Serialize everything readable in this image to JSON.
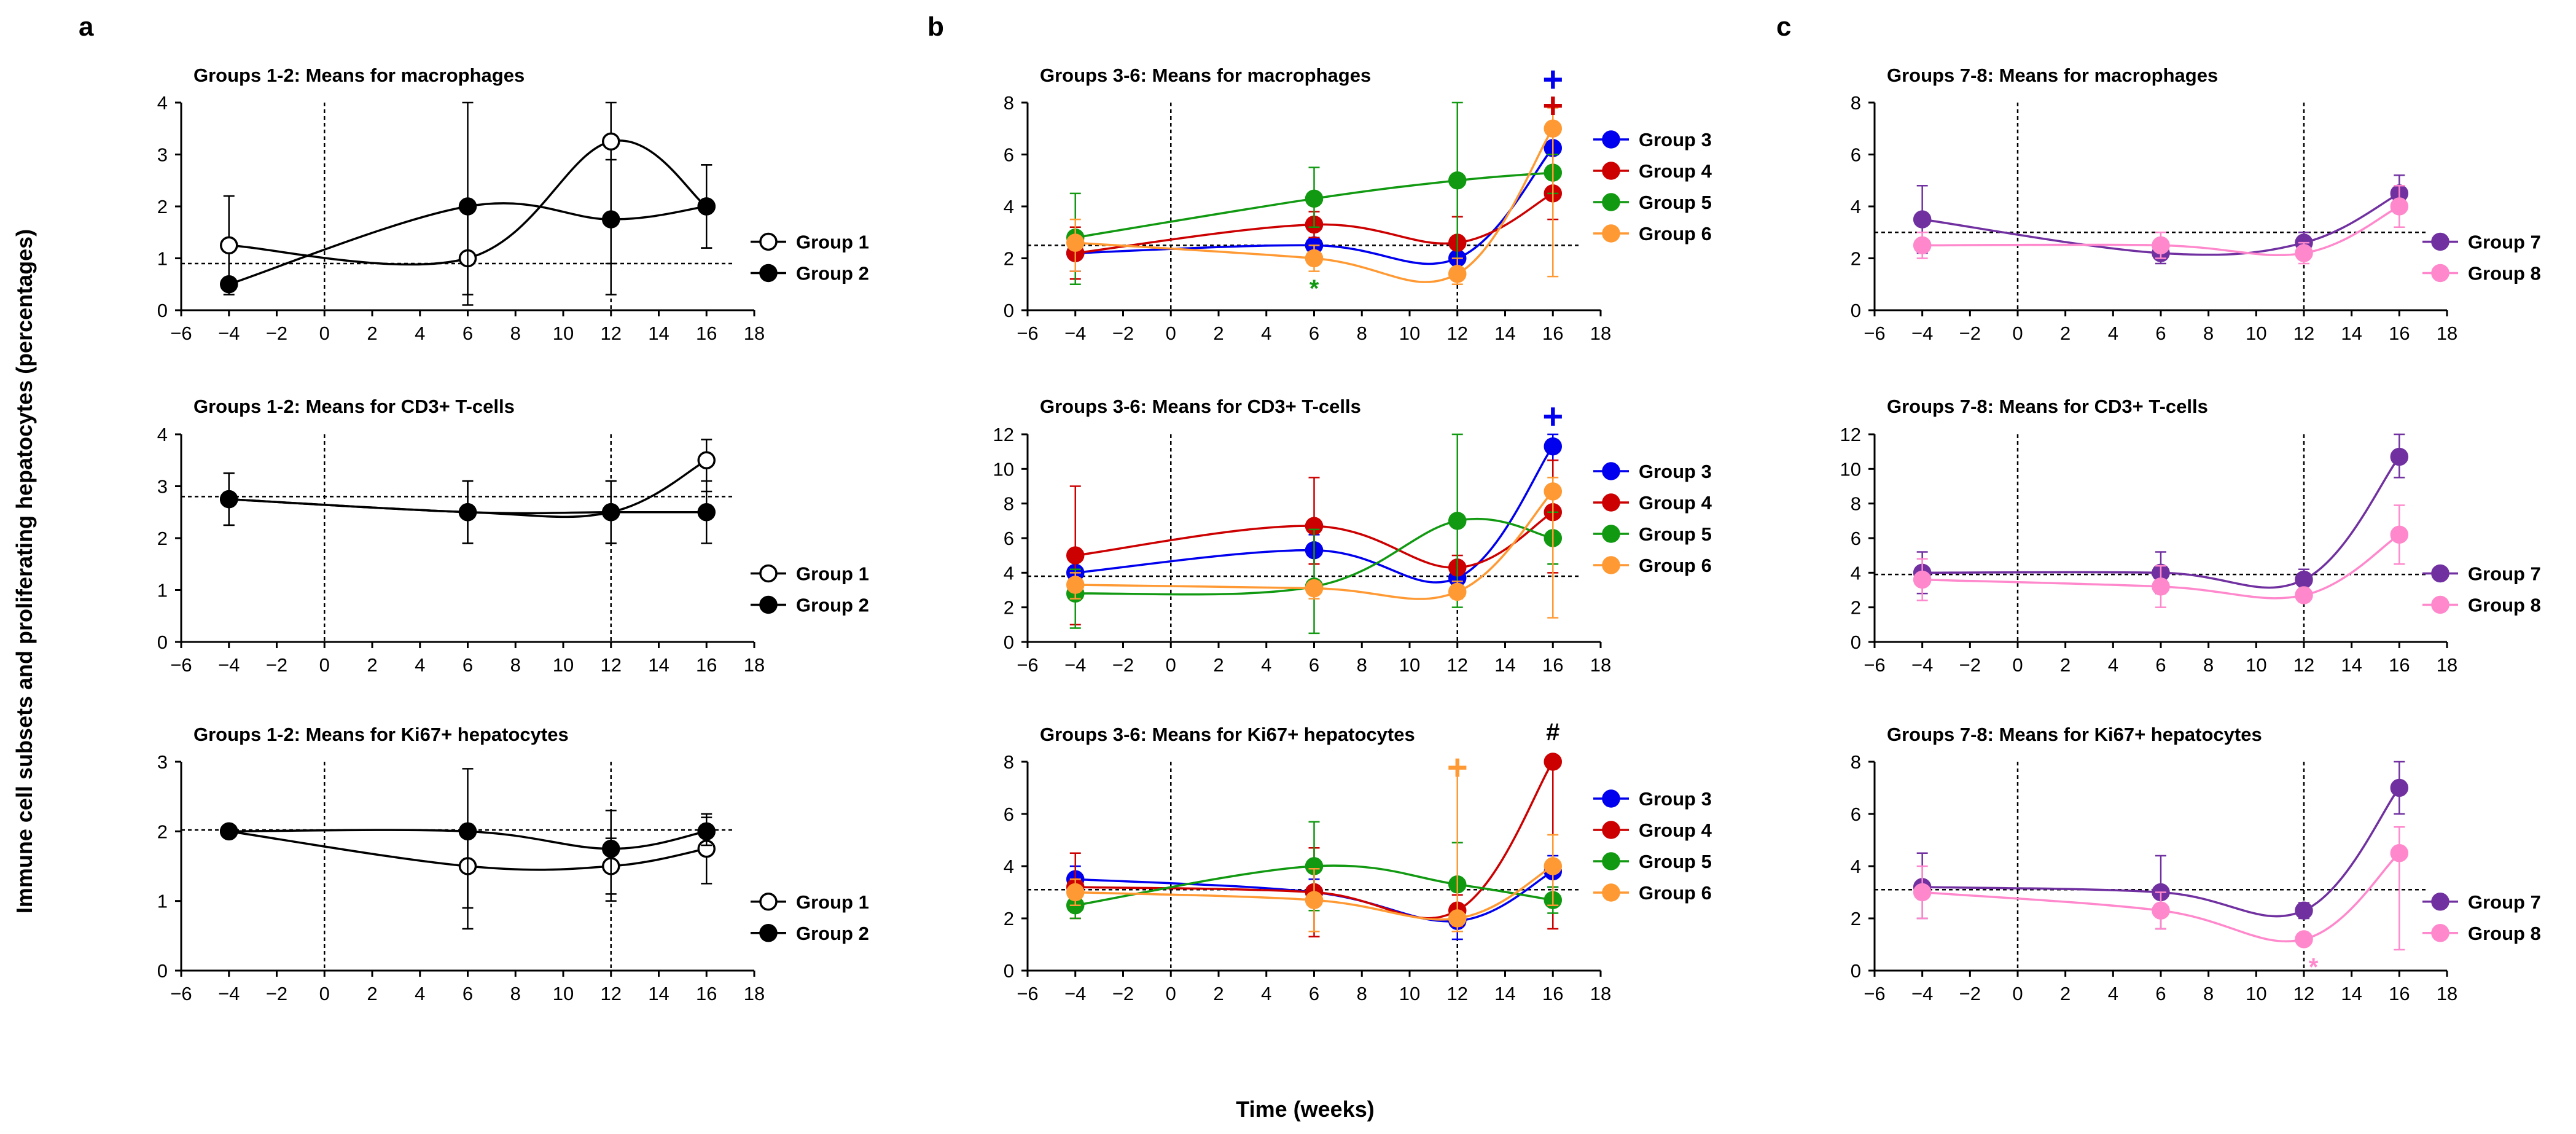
{
  "figure": {
    "panel_letters": [
      "a",
      "b",
      "c"
    ],
    "shared_ylabel": "Immune cell subsets and proliferating hepatocytes (percentages)",
    "shared_xlabel": "Time (weeks)"
  },
  "chart_data": [
    {
      "type": "line",
      "title": "Groups 1-2: Means for macrophages",
      "x": [
        -4,
        6,
        12,
        16
      ],
      "xlim": [
        -6,
        18
      ],
      "xticks": [
        -6,
        -4,
        -2,
        0,
        2,
        4,
        6,
        8,
        10,
        12,
        14,
        16,
        18
      ],
      "ylim": [
        0,
        4
      ],
      "yticks": [
        0,
        1,
        2,
        3,
        4
      ],
      "baseline": 0.9,
      "vlines": [
        0,
        12
      ],
      "series": [
        {
          "name": "Group 1",
          "color": "#000000",
          "hollow": true,
          "values": [
            1.25,
            1.0,
            3.25,
            2.0
          ],
          "err": [
            [
              0.3,
              2.2
            ],
            [
              0.1,
              2.0
            ],
            [
              0.9,
              4.0
            ],
            [
              1.2,
              2.8
            ]
          ]
        },
        {
          "name": "Group 2",
          "color": "#000000",
          "hollow": false,
          "values": [
            0.5,
            2.0,
            1.75,
            2.0
          ],
          "err": [
            [
              0.5,
              0.5
            ],
            [
              0.3,
              4.0
            ],
            [
              0.3,
              2.9
            ],
            [
              1.2,
              2.8
            ]
          ]
        }
      ],
      "annotations": []
    },
    {
      "type": "line",
      "title": "Groups 1-2: Means for CD3+ T-cells",
      "x": [
        -4,
        6,
        12,
        16
      ],
      "xlim": [
        -6,
        18
      ],
      "xticks": [
        -6,
        -4,
        -2,
        0,
        2,
        4,
        6,
        8,
        10,
        12,
        14,
        16,
        18
      ],
      "ylim": [
        0,
        4
      ],
      "yticks": [
        0,
        1,
        2,
        3,
        4
      ],
      "baseline": 2.8,
      "vlines": [
        0,
        12
      ],
      "series": [
        {
          "name": "Group 1",
          "color": "#000000",
          "hollow": true,
          "values": [
            2.75,
            2.5,
            2.5,
            3.5
          ],
          "err": [
            [
              2.25,
              3.25
            ],
            [
              1.9,
              3.1
            ],
            [
              1.9,
              3.1
            ],
            [
              2.9,
              3.9
            ]
          ]
        },
        {
          "name": "Group 2",
          "color": "#000000",
          "hollow": false,
          "values": [
            2.75,
            2.5,
            2.5,
            2.5
          ],
          "err": [
            [
              2.25,
              3.25
            ],
            [
              1.9,
              3.1
            ],
            [
              1.9,
              3.1
            ],
            [
              1.9,
              3.1
            ]
          ]
        }
      ],
      "annotations": []
    },
    {
      "type": "line",
      "title": "Groups 1-2: Means for Ki67+ hepatocytes",
      "x": [
        -4,
        6,
        12,
        16
      ],
      "xlim": [
        -6,
        18
      ],
      "xticks": [
        -6,
        -4,
        -2,
        0,
        2,
        4,
        6,
        8,
        10,
        12,
        14,
        16,
        18
      ],
      "ylim": [
        0,
        3
      ],
      "yticks": [
        0,
        1,
        2,
        3
      ],
      "baseline": 2.02,
      "vlines": [
        0,
        12
      ],
      "series": [
        {
          "name": "Group 1",
          "color": "#000000",
          "hollow": true,
          "values": [
            2.0,
            1.5,
            1.5,
            1.75
          ],
          "err": [
            [
              2.0,
              2.0
            ],
            [
              0.9,
              2.1
            ],
            [
              1.1,
              1.9
            ],
            [
              1.25,
              2.25
            ]
          ]
        },
        {
          "name": "Group 2",
          "color": "#000000",
          "hollow": false,
          "values": [
            2.0,
            2.0,
            1.75,
            2.0
          ],
          "err": [
            [
              2.0,
              2.0
            ],
            [
              0.6,
              2.9
            ],
            [
              1.0,
              2.3
            ],
            [
              1.8,
              2.2
            ]
          ]
        }
      ],
      "annotations": []
    },
    {
      "type": "line",
      "title": "Groups 3-6: Means for macrophages",
      "x": [
        -4,
        6,
        12,
        16
      ],
      "xlim": [
        -6,
        18
      ],
      "xticks": [
        -6,
        -4,
        -2,
        0,
        2,
        4,
        6,
        8,
        10,
        12,
        14,
        16,
        18
      ],
      "ylim": [
        0,
        8
      ],
      "yticks": [
        0,
        2,
        4,
        6,
        8
      ],
      "baseline": 2.5,
      "vlines": [
        0,
        12
      ],
      "series": [
        {
          "name": "Group 3",
          "color": "#0000ee",
          "hollow": false,
          "values": [
            2.2,
            2.5,
            2.0,
            6.25
          ],
          "err": [
            [
              1.5,
              3.0
            ],
            [
              2.2,
              2.8
            ],
            [
              1.5,
              2.5
            ],
            [
              5.5,
              7.0
            ]
          ]
        },
        {
          "name": "Group 4",
          "color": "#cc0000",
          "hollow": false,
          "values": [
            2.2,
            3.3,
            2.6,
            4.5
          ],
          "err": [
            [
              1.2,
              3.2
            ],
            [
              2.8,
              3.8
            ],
            [
              1.6,
              3.6
            ],
            [
              3.5,
              5.5
            ]
          ]
        },
        {
          "name": "Group 5",
          "color": "#119911",
          "hollow": false,
          "values": [
            2.8,
            4.3,
            5.0,
            5.3
          ],
          "err": [
            [
              1.0,
              4.5
            ],
            [
              3.2,
              5.5
            ],
            [
              1.4,
              8.0
            ],
            [
              4.5,
              6.0
            ]
          ]
        },
        {
          "name": "Group 6",
          "color": "#ff9933",
          "hollow": false,
          "values": [
            2.6,
            2.0,
            1.4,
            7.0
          ],
          "err": [
            [
              1.5,
              3.5
            ],
            [
              1.5,
              2.5
            ],
            [
              1.0,
              2.0
            ],
            [
              1.3,
              7.8
            ]
          ]
        }
      ],
      "annotations": [
        {
          "symbol": "+",
          "x": 16,
          "y": 8.8,
          "color": "#0000ee"
        },
        {
          "symbol": "+",
          "x": 16,
          "y": 7.8,
          "color": "#cc0000"
        },
        {
          "symbol": "*",
          "x": 6,
          "y": 0.9,
          "color": "#119911"
        }
      ]
    },
    {
      "type": "line",
      "title": "Groups 3-6: Means for CD3+ T-cells",
      "x": [
        -4,
        6,
        12,
        16
      ],
      "xlim": [
        -6,
        18
      ],
      "xticks": [
        -6,
        -4,
        -2,
        0,
        2,
        4,
        6,
        8,
        10,
        12,
        14,
        16,
        18
      ],
      "ylim": [
        0,
        12
      ],
      "yticks": [
        0,
        2,
        4,
        6,
        8,
        10,
        12
      ],
      "baseline": 3.8,
      "vlines": [
        0,
        12
      ],
      "series": [
        {
          "name": "Group 3",
          "color": "#0000ee",
          "hollow": false,
          "values": [
            4.0,
            5.3,
            3.7,
            11.3
          ],
          "err": [
            [
              3.2,
              4.8
            ],
            [
              4.5,
              6.2
            ],
            [
              3.0,
              4.4
            ],
            [
              10.5,
              12.0
            ]
          ]
        },
        {
          "name": "Group 4",
          "color": "#cc0000",
          "hollow": false,
          "values": [
            5.0,
            6.7,
            4.3,
            7.5
          ],
          "err": [
            [
              1.0,
              9.0
            ],
            [
              4.5,
              9.5
            ],
            [
              3.0,
              5.0
            ],
            [
              4.0,
              10.5
            ]
          ]
        },
        {
          "name": "Group 5",
          "color": "#119911",
          "hollow": false,
          "values": [
            2.8,
            3.2,
            7.0,
            6.0
          ],
          "err": [
            [
              0.8,
              4.2
            ],
            [
              0.5,
              6.5
            ],
            [
              2.0,
              12.0
            ],
            [
              4.5,
              7.5
            ]
          ]
        },
        {
          "name": "Group 6",
          "color": "#ff9933",
          "hollow": false,
          "values": [
            3.3,
            3.1,
            2.9,
            8.7
          ],
          "err": [
            [
              2.5,
              4.0
            ],
            [
              2.5,
              3.5
            ],
            [
              2.5,
              3.5
            ],
            [
              1.4,
              9.5
            ]
          ]
        }
      ],
      "annotations": [
        {
          "symbol": "+",
          "x": 16,
          "y": 12.9,
          "color": "#0000ee"
        }
      ]
    },
    {
      "type": "line",
      "title": "Groups 3-6: Means for Ki67+ hepatocytes",
      "x": [
        -4,
        6,
        12,
        16
      ],
      "xlim": [
        -6,
        18
      ],
      "xticks": [
        -6,
        -4,
        -2,
        0,
        2,
        4,
        6,
        8,
        10,
        12,
        14,
        16,
        18
      ],
      "ylim": [
        0,
        8
      ],
      "yticks": [
        0,
        2,
        4,
        6,
        8
      ],
      "baseline": 3.1,
      "vlines": [
        0,
        12
      ],
      "series": [
        {
          "name": "Group 3",
          "color": "#0000ee",
          "hollow": false,
          "values": [
            3.5,
            3.0,
            1.9,
            3.8
          ],
          "err": [
            [
              3.0,
              4.0
            ],
            [
              2.5,
              3.5
            ],
            [
              1.2,
              2.5
            ],
            [
              3.2,
              4.4
            ]
          ]
        },
        {
          "name": "Group 4",
          "color": "#cc0000",
          "hollow": false,
          "values": [
            3.2,
            3.0,
            2.3,
            8.0
          ],
          "err": [
            [
              2.0,
              4.5
            ],
            [
              1.3,
              4.7
            ],
            [
              1.7,
              2.9
            ],
            [
              1.6,
              8.0
            ]
          ]
        },
        {
          "name": "Group 5",
          "color": "#119911",
          "hollow": false,
          "values": [
            2.5,
            4.0,
            3.3,
            2.7
          ],
          "err": [
            [
              2.0,
              3.0
            ],
            [
              2.3,
              5.7
            ],
            [
              1.5,
              4.9
            ],
            [
              2.2,
              3.2
            ]
          ]
        },
        {
          "name": "Group 6",
          "color": "#ff9933",
          "hollow": false,
          "values": [
            3.0,
            2.7,
            2.0,
            4.0
          ],
          "err": [
            [
              2.5,
              3.5
            ],
            [
              1.5,
              3.9
            ],
            [
              1.5,
              7.8
            ],
            [
              2.5,
              5.2
            ]
          ]
        }
      ],
      "annotations": [
        {
          "symbol": "#",
          "x": 16,
          "y": 9.2,
          "color": "#000000"
        },
        {
          "symbol": "+",
          "x": 12,
          "y": 7.7,
          "color": "#ff9933"
        }
      ]
    },
    {
      "type": "line",
      "title": "Groups 7-8: Means for macrophages",
      "x": [
        -4,
        6,
        12,
        16
      ],
      "xlim": [
        -6,
        18
      ],
      "xticks": [
        -6,
        -4,
        -2,
        0,
        2,
        4,
        6,
        8,
        10,
        12,
        14,
        16,
        18
      ],
      "ylim": [
        0,
        8
      ],
      "yticks": [
        0,
        2,
        4,
        6,
        8
      ],
      "baseline": 3.0,
      "vlines": [
        0,
        12
      ],
      "series": [
        {
          "name": "Group 7",
          "color": "#7030a0",
          "hollow": false,
          "values": [
            3.5,
            2.2,
            2.6,
            4.5
          ],
          "err": [
            [
              2.2,
              4.8
            ],
            [
              1.8,
              2.6
            ],
            [
              2.2,
              3.0
            ],
            [
              3.8,
              5.2
            ]
          ]
        },
        {
          "name": "Group 8",
          "color": "#ff88cc",
          "hollow": false,
          "values": [
            2.5,
            2.5,
            2.2,
            4.0
          ],
          "err": [
            [
              2.0,
              3.0
            ],
            [
              2.0,
              3.0
            ],
            [
              1.8,
              2.6
            ],
            [
              3.2,
              4.8
            ]
          ]
        }
      ],
      "annotations": []
    },
    {
      "type": "line",
      "title": "Groups 7-8: Means for CD3+ T-cells",
      "x": [
        -4,
        6,
        12,
        16
      ],
      "xlim": [
        -6,
        18
      ],
      "xticks": [
        -6,
        -4,
        -2,
        0,
        2,
        4,
        6,
        8,
        10,
        12,
        14,
        16,
        18
      ],
      "ylim": [
        0,
        12
      ],
      "yticks": [
        0,
        2,
        4,
        6,
        8,
        10,
        12
      ],
      "baseline": 3.9,
      "vlines": [
        0,
        12
      ],
      "series": [
        {
          "name": "Group 7",
          "color": "#7030a0",
          "hollow": false,
          "values": [
            4.0,
            4.0,
            3.6,
            10.7
          ],
          "err": [
            [
              2.8,
              5.2
            ],
            [
              2.8,
              5.2
            ],
            [
              3.0,
              4.2
            ],
            [
              9.5,
              12.0
            ]
          ]
        },
        {
          "name": "Group 8",
          "color": "#ff88cc",
          "hollow": false,
          "values": [
            3.6,
            3.2,
            2.7,
            6.2
          ],
          "err": [
            [
              2.4,
              4.8
            ],
            [
              2.0,
              4.4
            ],
            [
              2.3,
              3.1
            ],
            [
              4.5,
              7.9
            ]
          ]
        }
      ],
      "annotations": []
    },
    {
      "type": "line",
      "title": "Groups 7-8: Means for Ki67+ hepatocytes",
      "x": [
        -4,
        6,
        12,
        16
      ],
      "xlim": [
        -6,
        18
      ],
      "xticks": [
        -6,
        -4,
        -2,
        0,
        2,
        4,
        6,
        8,
        10,
        12,
        14,
        16,
        18
      ],
      "ylim": [
        0,
        8
      ],
      "yticks": [
        0,
        2,
        4,
        6,
        8
      ],
      "baseline": 3.1,
      "vlines": [
        0,
        12
      ],
      "series": [
        {
          "name": "Group 7",
          "color": "#7030a0",
          "hollow": false,
          "values": [
            3.2,
            3.0,
            2.3,
            7.0
          ],
          "err": [
            [
              2.0,
              4.5
            ],
            [
              1.6,
              4.4
            ],
            [
              2.0,
              2.6
            ],
            [
              6.0,
              8.0
            ]
          ]
        },
        {
          "name": "Group 8",
          "color": "#ff88cc",
          "hollow": false,
          "values": [
            3.0,
            2.3,
            1.2,
            4.5
          ],
          "err": [
            [
              2.0,
              4.0
            ],
            [
              1.6,
              3.0
            ],
            [
              1.0,
              1.4
            ],
            [
              0.8,
              5.5
            ]
          ]
        }
      ],
      "annotations": [
        {
          "symbol": "*",
          "x": 12.4,
          "y": 0.2,
          "color": "#ff88cc"
        }
      ]
    }
  ]
}
